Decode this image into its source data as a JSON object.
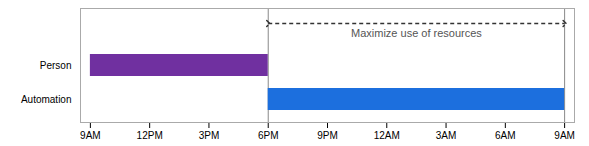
{
  "chart_data": {
    "type": "gantt",
    "orientation": "horizontal",
    "categories": [
      "Person",
      "Automation"
    ],
    "starts": [
      0,
      9
    ],
    "ends": [
      9,
      24
    ],
    "colors": [
      "#7030a0",
      "#1c6fde"
    ],
    "xlim": [
      -0.5,
      24.5
    ],
    "xticks": [
      {
        "value": 0,
        "label": "9AM"
      },
      {
        "value": 3,
        "label": "12PM"
      },
      {
        "value": 6,
        "label": "3PM"
      },
      {
        "value": 9,
        "label": "6PM"
      },
      {
        "value": 12,
        "label": "9PM"
      },
      {
        "value": 15,
        "label": "12AM"
      },
      {
        "value": 18,
        "label": "3AM"
      },
      {
        "value": 21,
        "label": "6AM"
      },
      {
        "value": 24,
        "label": "9AM"
      }
    ],
    "vertical_lines": [
      9,
      24
    ],
    "annotation": {
      "text": "Maximize use of resources",
      "x": 16.5,
      "x_start": 9,
      "x_end": 24
    },
    "grid": false
  }
}
